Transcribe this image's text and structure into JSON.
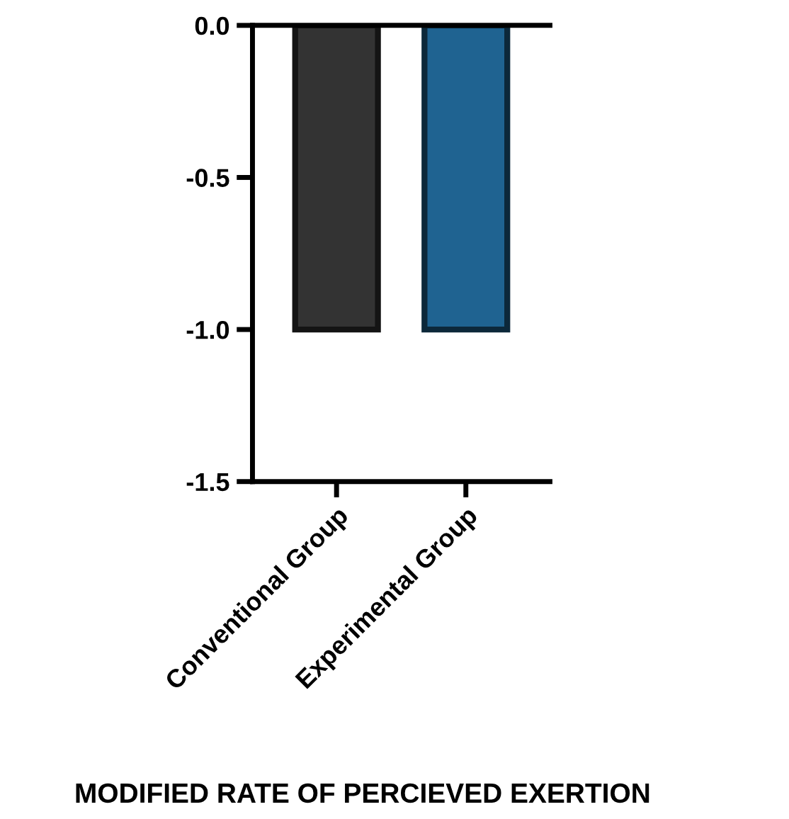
{
  "chart_data": {
    "type": "bar",
    "xlabel": "MODIFIED RATE OF PERCIEVED EXERTION",
    "categories": [
      "Conventional Group",
      "Experimental Group"
    ],
    "values": [
      -1.0,
      -1.0
    ],
    "colors": [
      "#333333",
      "#1f6391"
    ],
    "ylim": [
      -1.5,
      0.0
    ],
    "yticks": [
      {
        "value": 0.0,
        "label": "0.0"
      },
      {
        "value": -0.5,
        "label": "-0.5"
      },
      {
        "value": -1.0,
        "label": "-1.0"
      },
      {
        "value": -1.5,
        "label": "-1.5"
      }
    ],
    "grid": false,
    "legend": false
  }
}
